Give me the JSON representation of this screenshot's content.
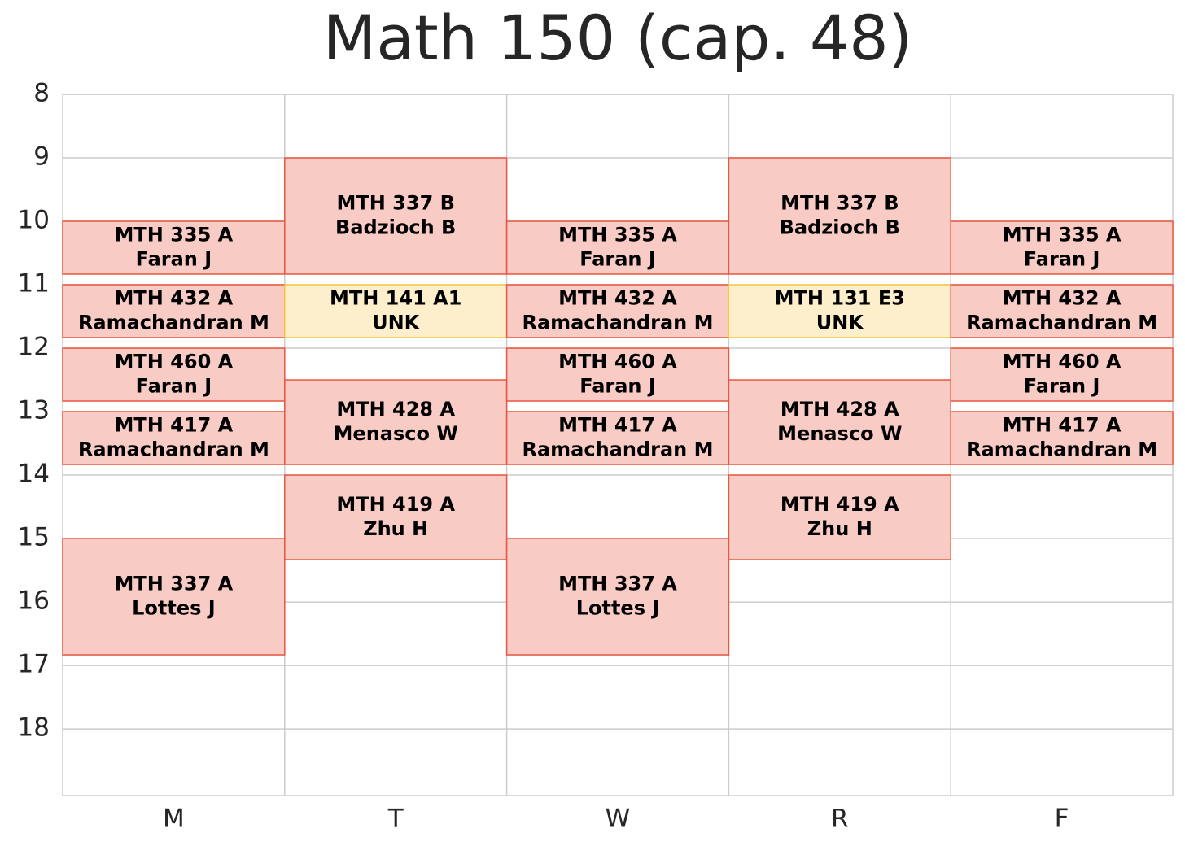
{
  "chart_data": {
    "type": "schedule",
    "title": "Math 150 (cap. 48)",
    "categories": [
      "M",
      "T",
      "W",
      "R",
      "F"
    ],
    "ylim": [
      19.05,
      8
    ],
    "yticks": [
      8,
      9,
      10,
      11,
      12,
      13,
      14,
      15,
      16,
      17,
      18
    ],
    "grid": true,
    "events": [
      {
        "day": 0,
        "start": 10,
        "end": 10.833,
        "course": "MTH 335 A",
        "instructor": "Faran J",
        "color": "#f9cbc5",
        "edgecolor": "#e8563f"
      },
      {
        "day": 0,
        "start": 11,
        "end": 11.833,
        "course": "MTH 432 A",
        "instructor": "Ramachandran M",
        "color": "#f9cbc5",
        "edgecolor": "#e8563f"
      },
      {
        "day": 0,
        "start": 12,
        "end": 12.833,
        "course": "MTH 460 A",
        "instructor": "Faran J",
        "color": "#f9cbc5",
        "edgecolor": "#e8563f"
      },
      {
        "day": 0,
        "start": 13,
        "end": 13.833,
        "course": "MTH 417 A",
        "instructor": "Ramachandran M",
        "color": "#f9cbc5",
        "edgecolor": "#e8563f"
      },
      {
        "day": 0,
        "start": 15,
        "end": 16.833,
        "course": "MTH 337 A",
        "instructor": "Lottes J",
        "color": "#f9cbc5",
        "edgecolor": "#e8563f"
      },
      {
        "day": 1,
        "start": 9,
        "end": 10.833,
        "course": "MTH 337 B",
        "instructor": "Badzioch B",
        "color": "#f9cbc5",
        "edgecolor": "#e8563f"
      },
      {
        "day": 1,
        "start": 11,
        "end": 11.833,
        "course": "MTH 141 A1",
        "instructor": "UNK",
        "color": "#fdefcc",
        "edgecolor": "#f5c842"
      },
      {
        "day": 1,
        "start": 12.5,
        "end": 13.833,
        "course": "MTH 428 A",
        "instructor": "Menasco W",
        "color": "#f9cbc5",
        "edgecolor": "#e8563f"
      },
      {
        "day": 1,
        "start": 14,
        "end": 15.333,
        "course": "MTH 419 A",
        "instructor": "Zhu H",
        "color": "#f9cbc5",
        "edgecolor": "#e8563f"
      },
      {
        "day": 2,
        "start": 10,
        "end": 10.833,
        "course": "MTH 335 A",
        "instructor": "Faran J",
        "color": "#f9cbc5",
        "edgecolor": "#e8563f"
      },
      {
        "day": 2,
        "start": 11,
        "end": 11.833,
        "course": "MTH 432 A",
        "instructor": "Ramachandran M",
        "color": "#f9cbc5",
        "edgecolor": "#e8563f"
      },
      {
        "day": 2,
        "start": 12,
        "end": 12.833,
        "course": "MTH 460 A",
        "instructor": "Faran J",
        "color": "#f9cbc5",
        "edgecolor": "#e8563f"
      },
      {
        "day": 2,
        "start": 13,
        "end": 13.833,
        "course": "MTH 417 A",
        "instructor": "Ramachandran M",
        "color": "#f9cbc5",
        "edgecolor": "#e8563f"
      },
      {
        "day": 2,
        "start": 15,
        "end": 16.833,
        "course": "MTH 337 A",
        "instructor": "Lottes J",
        "color": "#f9cbc5",
        "edgecolor": "#e8563f"
      },
      {
        "day": 3,
        "start": 9,
        "end": 10.833,
        "course": "MTH 337 B",
        "instructor": "Badzioch B",
        "color": "#f9cbc5",
        "edgecolor": "#e8563f"
      },
      {
        "day": 3,
        "start": 11,
        "end": 11.833,
        "course": "MTH 131 E3",
        "instructor": "UNK",
        "color": "#fdefcc",
        "edgecolor": "#f5c842"
      },
      {
        "day": 3,
        "start": 12.5,
        "end": 13.833,
        "course": "MTH 428 A",
        "instructor": "Menasco W",
        "color": "#f9cbc5",
        "edgecolor": "#e8563f"
      },
      {
        "day": 3,
        "start": 14,
        "end": 15.333,
        "course": "MTH 419 A",
        "instructor": "Zhu H",
        "color": "#f9cbc5",
        "edgecolor": "#e8563f"
      },
      {
        "day": 4,
        "start": 10,
        "end": 10.833,
        "course": "MTH 335 A",
        "instructor": "Faran J",
        "color": "#f9cbc5",
        "edgecolor": "#e8563f"
      },
      {
        "day": 4,
        "start": 11,
        "end": 11.833,
        "course": "MTH 432 A",
        "instructor": "Ramachandran M",
        "color": "#f9cbc5",
        "edgecolor": "#e8563f"
      },
      {
        "day": 4,
        "start": 12,
        "end": 12.833,
        "course": "MTH 460 A",
        "instructor": "Faran J",
        "color": "#f9cbc5",
        "edgecolor": "#e8563f"
      },
      {
        "day": 4,
        "start": 13,
        "end": 13.833,
        "course": "MTH 417 A",
        "instructor": "Ramachandran M",
        "color": "#f9cbc5",
        "edgecolor": "#e8563f"
      }
    ]
  }
}
